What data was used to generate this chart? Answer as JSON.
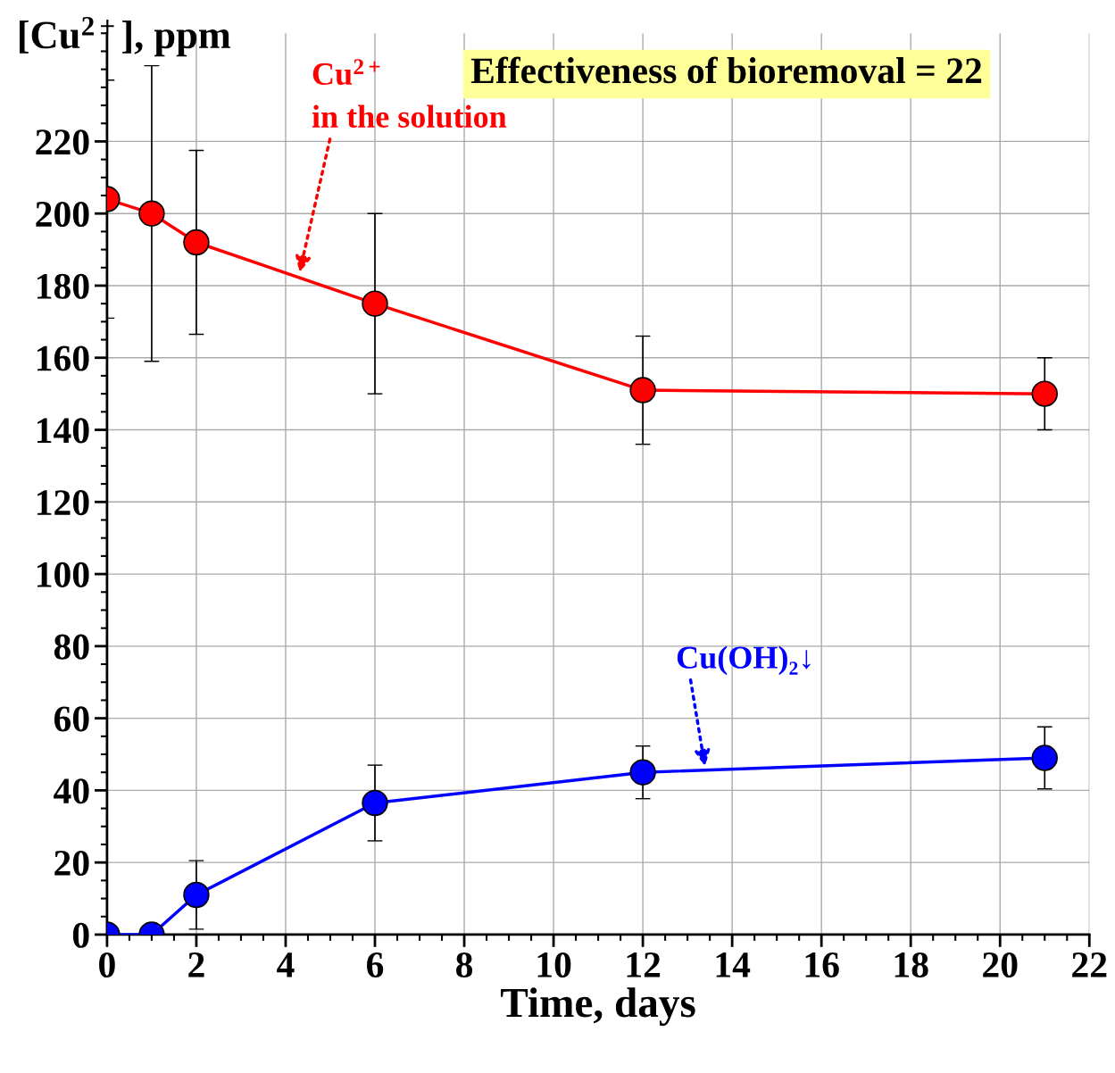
{
  "chart_data": {
    "type": "line",
    "xlabel": "Time, days",
    "ylabel": "[Cu$^{2+}$], ppm",
    "x": [
      0,
      1,
      2,
      6,
      12,
      21
    ],
    "series": [
      {
        "name": "Cu$^{2+}$\nin the solution",
        "color": "#ff0000",
        "values": [
          204,
          200,
          192,
          175,
          151,
          150
        ],
        "errors": [
          33,
          41,
          25.5,
          25,
          15,
          10
        ]
      },
      {
        "name": "Cu(OH)₂↓",
        "color": "#0000ff",
        "values": [
          0,
          0,
          11,
          36.5,
          45,
          49
        ],
        "errors": [
          null,
          null,
          9.5,
          10.5,
          7.3,
          8.6
        ]
      }
    ],
    "annotations": [
      "Effectiveness of bioremoval = 22"
    ],
    "xlim": [
      0,
      22
    ],
    "xticks": [
      0,
      2,
      4,
      6,
      8,
      10,
      12,
      14,
      16,
      18,
      20,
      22
    ],
    "ylim": [
      0,
      250
    ],
    "yticks": [
      0,
      20,
      40,
      60,
      80,
      100,
      120,
      140,
      160,
      180,
      200,
      220
    ],
    "grid": true,
    "marker": "circle",
    "line_style": "solid"
  }
}
